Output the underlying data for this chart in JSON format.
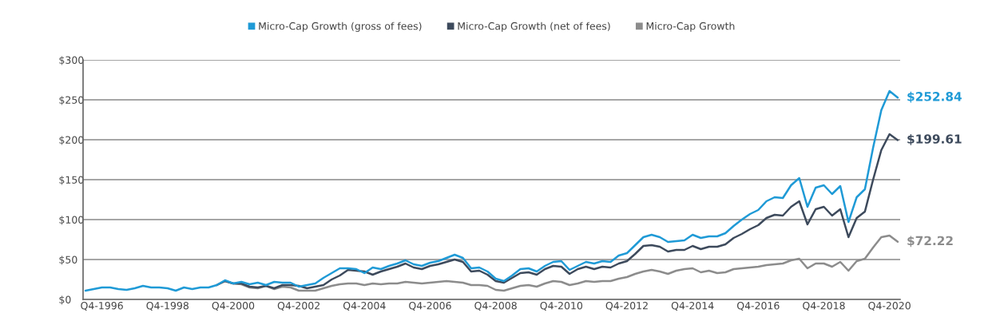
{
  "chart_data": {
    "type": "line",
    "categories": [
      null,
      null,
      "Q4-1996",
      null,
      null,
      null,
      null,
      null,
      null,
      null,
      "Q4-1998",
      null,
      null,
      null,
      null,
      null,
      null,
      null,
      "Q4-2000",
      null,
      null,
      null,
      null,
      null,
      null,
      null,
      "Q4-2002",
      null,
      null,
      null,
      null,
      null,
      null,
      null,
      "Q4-2004",
      null,
      null,
      null,
      null,
      null,
      null,
      null,
      "Q4-2006",
      null,
      null,
      null,
      null,
      null,
      null,
      null,
      "Q4-2008",
      null,
      null,
      null,
      null,
      null,
      null,
      null,
      "Q4-2010",
      null,
      null,
      null,
      null,
      null,
      null,
      null,
      "Q4-2012",
      null,
      null,
      null,
      null,
      null,
      null,
      null,
      "Q4-2014",
      null,
      null,
      null,
      null,
      null,
      null,
      null,
      "Q4-2016",
      null,
      null,
      null,
      null,
      null,
      null,
      null,
      "Q4-2018",
      null,
      null,
      null,
      null,
      null,
      null,
      null,
      "Q4-2020",
      null
    ],
    "series": [
      {
        "name": "Micro-Cap Growth (gross of fees)",
        "color": "#1f9ad6",
        "values": [
          11,
          13,
          15,
          15,
          13,
          12,
          14,
          17,
          15,
          15,
          14,
          11,
          15,
          13,
          15,
          15,
          18,
          24,
          20,
          22,
          19,
          21,
          18,
          22,
          21,
          21,
          16,
          18,
          20,
          27,
          33,
          39,
          39,
          38,
          33,
          40,
          38,
          42,
          45,
          49,
          44,
          42,
          46,
          48,
          52,
          56,
          52,
          39,
          40,
          35,
          26,
          23,
          30,
          38,
          39,
          35,
          42,
          47,
          48,
          37,
          42,
          47,
          45,
          48,
          47,
          55,
          58,
          68,
          78,
          81,
          78,
          72,
          73,
          74,
          81,
          77,
          79,
          79,
          83,
          92,
          100,
          107,
          112,
          123,
          128,
          127,
          143,
          152,
          116,
          140,
          143,
          132,
          142,
          97,
          128,
          138,
          190,
          237,
          261,
          252.84
        ]
      },
      {
        "name": "Micro-Cap Growth (net of fees)",
        "color": "#3d4a5c",
        "values": [
          null,
          null,
          null,
          null,
          null,
          null,
          null,
          null,
          null,
          null,
          null,
          null,
          null,
          null,
          null,
          null,
          18,
          23,
          20,
          20,
          16,
          15,
          17,
          14,
          18,
          18,
          17,
          14,
          16,
          18,
          25,
          30,
          37,
          36,
          35,
          31,
          35,
          38,
          41,
          45,
          40,
          38,
          42,
          44,
          47,
          50,
          47,
          35,
          36,
          31,
          23,
          21,
          27,
          33,
          34,
          31,
          38,
          42,
          41,
          32,
          38,
          41,
          38,
          41,
          40,
          45,
          48,
          57,
          67,
          68,
          66,
          60,
          62,
          62,
          67,
          63,
          66,
          66,
          69,
          77,
          82,
          88,
          93,
          102,
          106,
          105,
          116,
          123,
          94,
          113,
          116,
          105,
          113,
          78,
          102,
          110,
          150,
          187,
          207,
          199.61
        ]
      },
      {
        "name": "Micro-Cap Growth",
        "color": "#8c8c8c",
        "values": [
          null,
          null,
          null,
          null,
          null,
          null,
          null,
          null,
          null,
          null,
          null,
          null,
          null,
          null,
          null,
          null,
          18,
          23,
          20,
          19,
          15,
          14,
          17,
          13,
          16,
          15,
          11,
          11,
          11,
          14,
          17,
          19,
          20,
          20,
          18,
          20,
          19,
          20,
          20,
          22,
          21,
          20,
          21,
          22,
          23,
          22,
          21,
          18,
          18,
          17,
          12,
          11,
          14,
          17,
          18,
          16,
          20,
          23,
          22,
          18,
          20,
          23,
          22,
          23,
          23,
          26,
          28,
          32,
          35,
          37,
          35,
          32,
          36,
          38,
          39,
          34,
          36,
          33,
          34,
          38,
          39,
          40,
          41,
          43,
          44,
          45,
          49,
          51,
          39,
          45,
          45,
          41,
          47,
          36,
          48,
          51,
          65,
          78,
          80,
          72.22
        ]
      }
    ],
    "ylim": [
      0,
      300
    ],
    "yticks": [
      {
        "value": 0,
        "label": "$0"
      },
      {
        "value": 50,
        "label": "$50"
      },
      {
        "value": 100,
        "label": "$100"
      },
      {
        "value": 150,
        "label": "$150"
      },
      {
        "value": 200,
        "label": "$200"
      },
      {
        "value": 250,
        "label": "$250"
      },
      {
        "value": 300,
        "label": "$300"
      }
    ],
    "grid": "y",
    "legend": "top",
    "marker": "none",
    "line_style": "solid",
    "annotations": [
      "$252.84",
      "$199.61",
      "$72.22"
    ]
  }
}
